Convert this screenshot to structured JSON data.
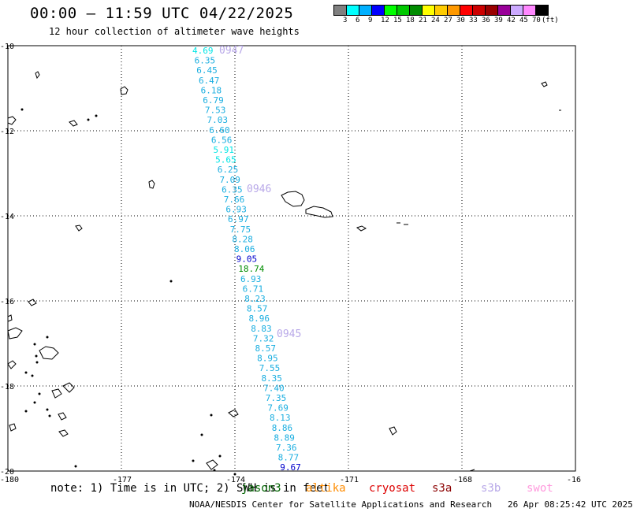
{
  "header": {
    "title": "00:00 – 11:59 UTC 04/22/2025",
    "subtitle": "12 hour collection of altimeter wave heights"
  },
  "colorbar": {
    "colors": [
      "#808080",
      "#00ffff",
      "#00b0ff",
      "#0000ff",
      "#00ff00",
      "#00c800",
      "#008c00",
      "#ffff00",
      "#ffcc00",
      "#ff9900",
      "#ff0000",
      "#cc0000",
      "#990000",
      "#990099",
      "#ccaaff",
      "#ff88ff",
      "#000000"
    ],
    "labels": [
      "3",
      "6",
      "9",
      "12",
      "15",
      "18",
      "21",
      "24",
      "27",
      "30",
      "33",
      "36",
      "39",
      "42",
      "45",
      "70",
      "(ft)"
    ]
  },
  "axes": {
    "x_ticks": [
      "-180",
      "-177",
      "-174",
      "-171",
      "-168",
      "-16"
    ],
    "y_ticks": [
      "-10",
      "-12",
      "-14",
      "-16",
      "-18",
      "-20"
    ]
  },
  "track": {
    "pass_labels": [
      "0947",
      "0946",
      "0945"
    ],
    "values": [
      "4.69",
      "6.35",
      "6.45",
      "6.47",
      "6.18",
      "6.79",
      "7.53",
      "7.03",
      "6.60",
      "6.56",
      "5.91",
      "5.65",
      "6.25",
      "7.09",
      "6.35",
      "7.66",
      "6.93",
      "6.97",
      "7.75",
      "8.28",
      "8.06",
      "9.05",
      "18.74",
      "6.93",
      "6.71",
      "8.23",
      "8.57",
      "8.96",
      "8.83",
      "7.32",
      "8.57",
      "8.95",
      "7.55",
      "8.35",
      "7.40",
      "7.35",
      "7.69",
      "8.13",
      "8.86",
      "8.89",
      "7.36",
      "8.77",
      "9.67"
    ]
  },
  "footer": {
    "note": "note: 1) Time is in UTC; 2) SWH is in feet",
    "satellites": [
      {
        "name": "jason3",
        "color": "#006400"
      },
      {
        "name": "altika",
        "color": "#ff8c00"
      },
      {
        "name": "cryosat",
        "color": "#dd0000"
      },
      {
        "name": "s3a",
        "color": "#8b0000"
      },
      {
        "name": "s3b",
        "color": "#b8a8e8"
      },
      {
        "name": "swot",
        "color": "#ff99dd"
      }
    ],
    "credit": "NOAA/NESDIS Center for Satellite Applications and Research",
    "timestamp": "26 Apr 08:25:42 UTC 2025"
  }
}
